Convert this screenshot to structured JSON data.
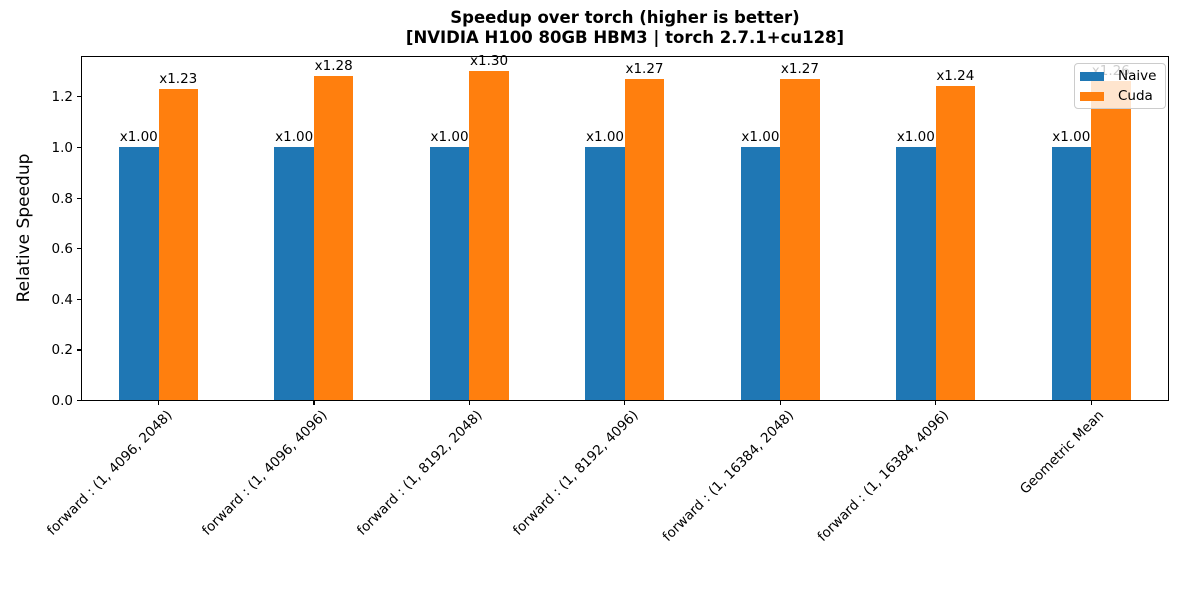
{
  "chart_data": {
    "type": "bar",
    "title_line1": "Speedup over torch (higher is better)",
    "title_line2": "[NVIDIA H100 80GB HBM3 | torch 2.7.1+cu128]",
    "ylabel": "Relative Speedup",
    "categories": [
      "forward : (1, 4096, 2048)",
      "forward : (1, 4096, 4096)",
      "forward : (1, 8192, 2048)",
      "forward : (1, 8192, 4096)",
      "forward : (1, 16384, 2048)",
      "forward : (1, 16384, 4096)",
      "Geometric Mean"
    ],
    "series": [
      {
        "name": "Naive",
        "color": "#1f77b4",
        "values": [
          1.0,
          1.0,
          1.0,
          1.0,
          1.0,
          1.0,
          1.0
        ],
        "labels": [
          "x1.00",
          "x1.00",
          "x1.00",
          "x1.00",
          "x1.00",
          "x1.00",
          "x1.00"
        ]
      },
      {
        "name": "Cuda",
        "color": "#ff7f0e",
        "values": [
          1.23,
          1.28,
          1.3,
          1.27,
          1.27,
          1.24,
          1.26
        ],
        "labels": [
          "x1.23",
          "x1.28",
          "x1.30",
          "x1.27",
          "x1.27",
          "x1.24",
          "x1.26"
        ]
      }
    ],
    "yticks": [
      0.0,
      0.2,
      0.4,
      0.6,
      0.8,
      1.0,
      1.2
    ],
    "ytick_labels": [
      "0.0",
      "0.2",
      "0.4",
      "0.6",
      "0.8",
      "1.0",
      "1.2"
    ],
    "ylim": [
      0,
      1.363
    ],
    "grid": false,
    "legend_position": "upper right"
  }
}
